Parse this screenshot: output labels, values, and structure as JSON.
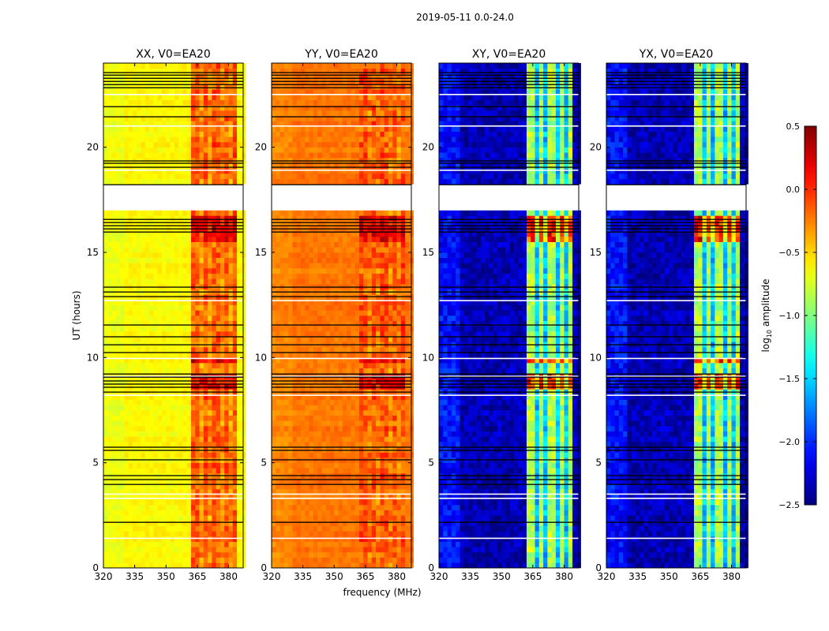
{
  "chart_data": {
    "type": "heatmap",
    "title": "2019-05-11 0.0-24.0",
    "xlabel": "frequency (MHz)",
    "ylabel": "UT (hours)",
    "xlim": [
      320,
      387
    ],
    "ylim": [
      0,
      24
    ],
    "xticks": [
      320,
      335,
      350,
      365,
      380
    ],
    "yticks": [
      0,
      5,
      10,
      15,
      20
    ],
    "band_range": [
      363,
      385
    ],
    "band_stripes_mhz": [
      366.5,
      371.5,
      376.5,
      381
    ],
    "panels": [
      {
        "title": "XX, V0=EA20",
        "low_level": -0.62,
        "band_level": -0.15,
        "hot_boost": 0.45,
        "stripe_drop": 0.15
      },
      {
        "title": "YY, V0=EA20",
        "low_level": -0.22,
        "band_level": -0.12,
        "hot_boost": 0.45,
        "stripe_drop": 0.12
      },
      {
        "title": "XY, V0=EA20",
        "low_level": -2.35,
        "band_level": -0.85,
        "hot_boost": 1.1,
        "stripe_drop": 0.7
      },
      {
        "title": "YX, V0=EA20",
        "low_level": -2.35,
        "band_level": -0.85,
        "hot_boost": 1.1,
        "stripe_drop": 0.7
      }
    ],
    "hot_intervals_hours": [
      [
        15.3,
        16.7
      ],
      [
        8.3,
        9.2
      ],
      [
        9.6,
        10.0
      ]
    ],
    "gap_hours": [
      [
        17.0,
        18.2
      ]
    ],
    "white_line_hours": [
      22.5,
      21.0,
      18.9,
      12.7,
      9.95,
      9.1,
      8.2,
      3.5,
      3.3,
      1.4
    ],
    "flagged_line_hours": [
      23.55,
      23.43,
      23.28,
      23.13,
      22.98,
      22.83,
      21.93,
      21.45,
      19.35,
      19.24,
      19.05,
      18.22,
      16.57,
      16.42,
      16.27,
      16.12,
      15.97,
      13.35,
      13.12,
      12.9,
      11.55,
      10.99,
      10.61,
      10.24,
      9.22,
      9.07,
      8.89,
      8.74,
      8.59,
      8.36,
      5.74,
      5.59,
      5.14,
      4.39,
      4.2,
      3.97,
      2.17
    ],
    "colorbar": {
      "label": {
        "prefix": "log",
        "subscript": "10",
        "suffix": " amplitude"
      },
      "range": [
        -2.5,
        0.5
      ],
      "ticks": [
        0.5,
        0.0,
        -0.5,
        -1.0,
        -1.5,
        -2.0,
        -2.5
      ],
      "tick_labels": [
        "0.5",
        "0.0",
        "−0.5",
        "−1.0",
        "−1.5",
        "−2.0",
        "−2.5"
      ]
    }
  }
}
